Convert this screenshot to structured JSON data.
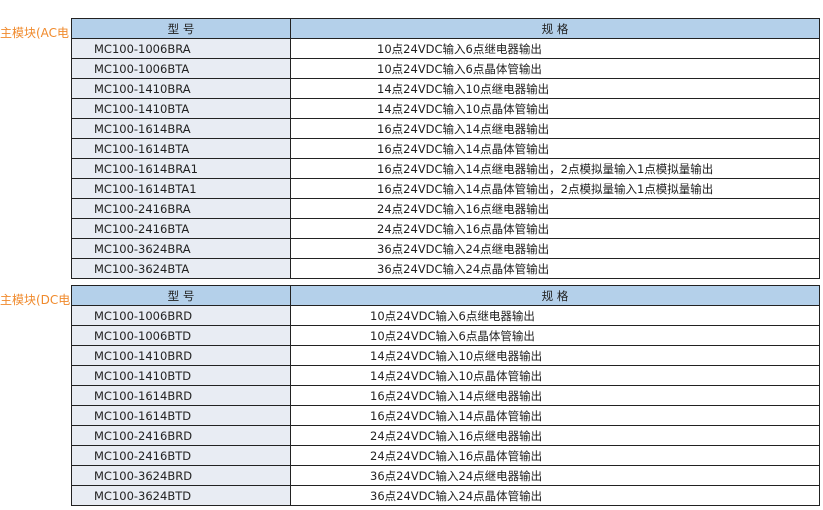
{
  "sections": [
    {
      "label": "主模块(AC电",
      "header": {
        "model": "型  号",
        "spec": "规  格"
      },
      "rows": [
        [
          "MC100-1006BRA",
          "10点24VDC输入6点继电器输出"
        ],
        [
          "MC100-1006BTA",
          "10点24VDC输入6点晶体管输出"
        ],
        [
          "MC100-1410BRA",
          "14点24VDC输入10点继电器输出"
        ],
        [
          "MC100-1410BTA",
          "14点24VDC输入10点晶体管输出"
        ],
        [
          "MC100-1614BRA",
          "16点24VDC输入14点继电器输出"
        ],
        [
          "MC100-1614BTA",
          "16点24VDC输入14点晶体管输出"
        ],
        [
          "MC100-1614BRA1",
          "16点24VDC输入14点继电器输出，2点模拟量输入1点模拟量输出"
        ],
        [
          "MC100-1614BTA1",
          "16点24VDC输入14点晶体管输出，2点模拟量输入1点模拟量输出"
        ],
        [
          "MC100-2416BRA",
          "24点24VDC输入16点继电器输出"
        ],
        [
          "MC100-2416BTA",
          "24点24VDC输入16点晶体管输出"
        ],
        [
          "MC100-3624BRA",
          "36点24VDC输入24点继电器输出"
        ],
        [
          "MC100-3624BTA",
          "36点24VDC输入24点晶体管输出"
        ]
      ]
    },
    {
      "label": "主模块(DC电",
      "header": {
        "model": "型  号",
        "spec": "规  格"
      },
      "rows": [
        [
          "MC100-1006BRD",
          "10点24VDC输入6点继电器输出"
        ],
        [
          "MC100-1006BTD",
          "10点24VDC输入6点晶体管输出"
        ],
        [
          "MC100-1410BRD",
          "14点24VDC输入10点继电器输出"
        ],
        [
          "MC100-1410BTD",
          "14点24VDC输入10点晶体管输出"
        ],
        [
          "MC100-1614BRD",
          "16点24VDC输入14点继电器输出"
        ],
        [
          "MC100-1614BTD",
          "16点24VDC输入14点晶体管输出"
        ],
        [
          "MC100-2416BRD",
          "24点24VDC输入16点继电器输出"
        ],
        [
          "MC100-2416BTD",
          "24点24VDC输入16点晶体管输出"
        ],
        [
          "MC100-3624BRD",
          "36点24VDC输入24点继电器输出"
        ],
        [
          "MC100-3624BTD",
          "36点24VDC输入24点晶体管输出"
        ]
      ]
    }
  ]
}
